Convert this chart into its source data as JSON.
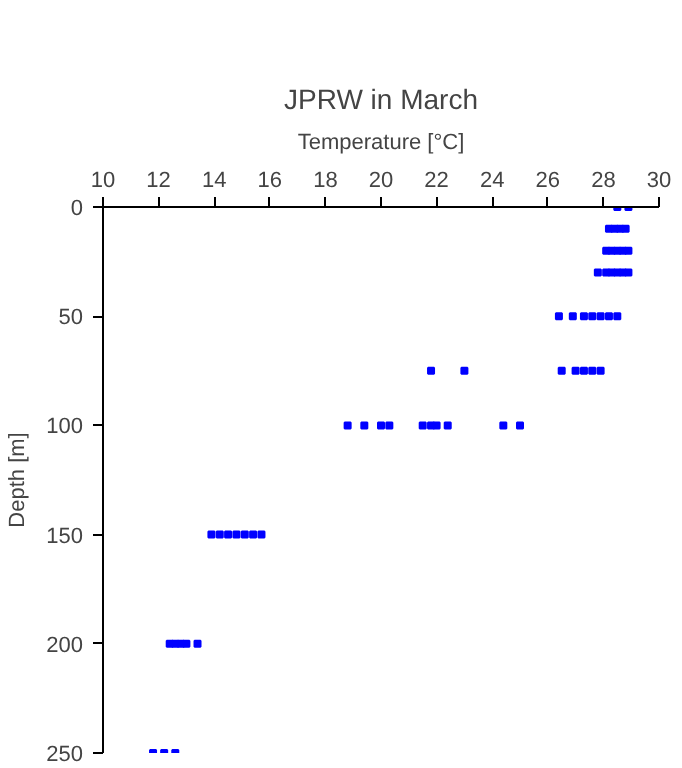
{
  "chart_data": {
    "type": "scatter",
    "title": "JPRW in March",
    "xlabel": "Temperature [°C]",
    "ylabel": "Depth [m]",
    "xlim": [
      10,
      30
    ],
    "xticks": [
      10,
      12,
      14,
      16,
      18,
      20,
      22,
      24,
      26,
      28,
      30
    ],
    "ylim": [
      250,
      0
    ],
    "yticks": [
      0,
      50,
      100,
      150,
      200,
      250
    ],
    "grid": false,
    "marker": "square",
    "series": [
      {
        "color": "#0000ff",
        "x": [
          28.5,
          28.9,
          28.2,
          28.4,
          28.6,
          28.8,
          28.1,
          28.3,
          28.5,
          28.7,
          28.9,
          27.8,
          28.1,
          28.3,
          28.5,
          28.7,
          28.9,
          26.4,
          26.9,
          27.3,
          27.6,
          27.9,
          28.2,
          28.5,
          21.8,
          23.0,
          26.5,
          27.0,
          27.3,
          27.6,
          27.9,
          18.8,
          19.4,
          20.0,
          20.3,
          21.5,
          21.8,
          22.0,
          22.4,
          24.4,
          25.0,
          13.9,
          14.2,
          14.5,
          14.8,
          15.1,
          15.4,
          15.7,
          12.4,
          12.6,
          12.8,
          13.0,
          13.4,
          11.8,
          12.2,
          12.6
        ],
        "values": [
          0,
          0,
          10,
          10,
          10,
          10,
          20,
          20,
          20,
          20,
          20,
          30,
          30,
          30,
          30,
          30,
          30,
          50,
          50,
          50,
          50,
          50,
          50,
          50,
          75,
          75,
          75,
          75,
          75,
          75,
          75,
          100,
          100,
          100,
          100,
          100,
          100,
          100,
          100,
          100,
          100,
          150,
          150,
          150,
          150,
          150,
          150,
          150,
          200,
          200,
          200,
          200,
          200,
          250,
          250,
          250
        ]
      }
    ]
  }
}
